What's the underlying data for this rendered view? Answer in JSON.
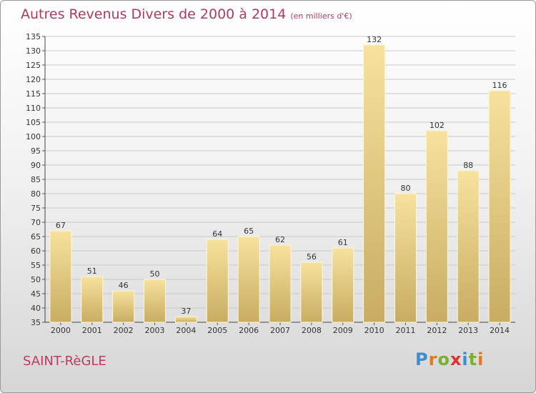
{
  "title": "Autres Revenus Divers de 2000 à 2014",
  "unit_note": "(en milliers d'€)",
  "commune": "SAINT-RèGLE",
  "logo": {
    "text": "Proxiti",
    "letter_colors": [
      "#3a8fd0",
      "#e07a20",
      "#7ab030",
      "#e03030",
      "#3a8fd0",
      "#7ab030",
      "#e07a20"
    ]
  },
  "colors": {
    "bar_light": "#f6e29e",
    "bar_dark": "#c8ac62",
    "grid": "#c8c8c8",
    "title": "#b03a5c"
  },
  "chart_data": {
    "type": "bar",
    "categories": [
      "2000",
      "2001",
      "2002",
      "2003",
      "2004",
      "2005",
      "2006",
      "2007",
      "2008",
      "2009",
      "2010",
      "2011",
      "2012",
      "2013",
      "2014"
    ],
    "values": [
      67,
      51,
      46,
      50,
      37,
      64,
      65,
      62,
      56,
      61,
      132,
      80,
      102,
      88,
      116
    ],
    "ylim": [
      35,
      135
    ],
    "yticks": [
      35,
      40,
      45,
      50,
      55,
      60,
      65,
      70,
      75,
      80,
      85,
      90,
      95,
      100,
      105,
      110,
      115,
      120,
      125,
      130,
      135
    ],
    "title": "Autres Revenus Divers de 2000 à 2014",
    "xlabel": "",
    "ylabel": "",
    "grid": true
  }
}
